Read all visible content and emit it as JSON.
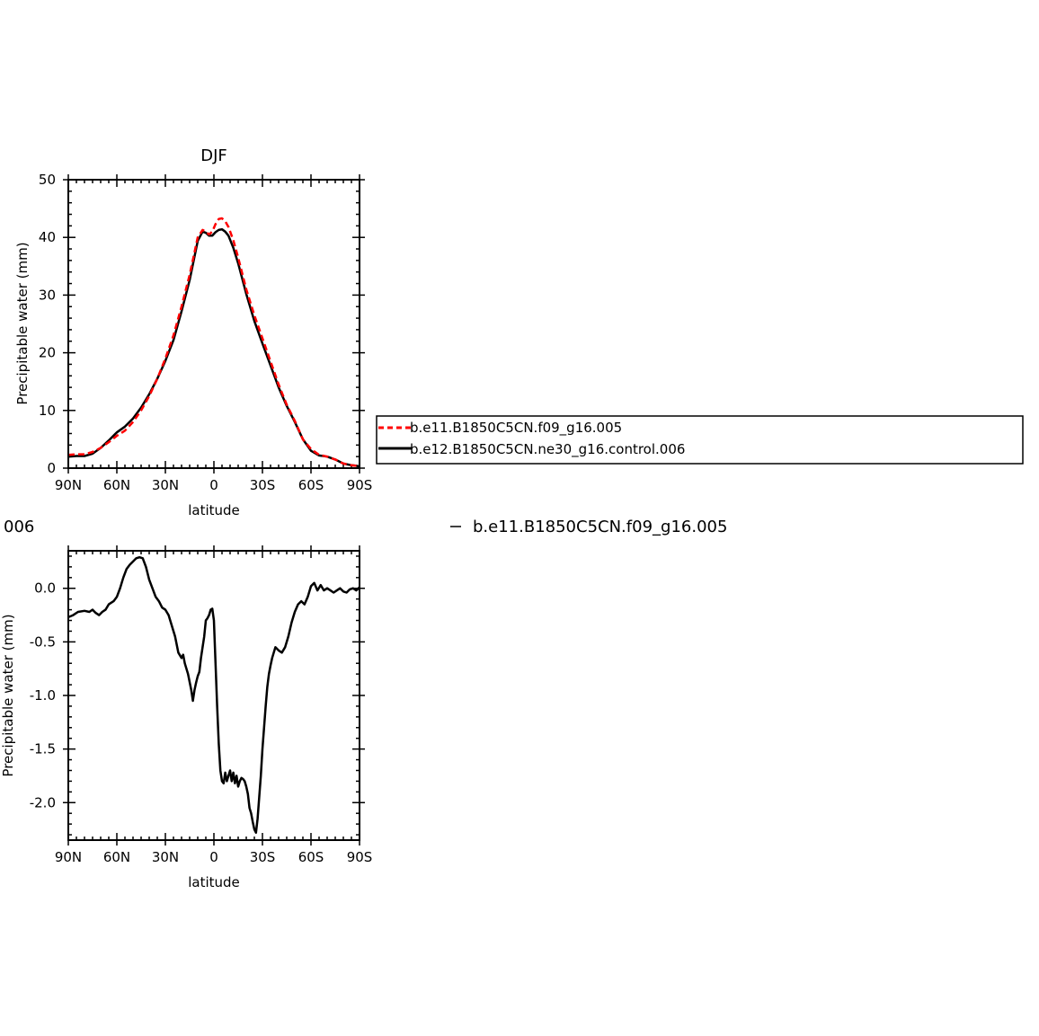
{
  "chart_data": [
    {
      "type": "line",
      "title": "DJF",
      "xlabel": "latitude",
      "ylabel": "Precipitable water (mm)",
      "xlim": [
        -90,
        90
      ],
      "ylim": [
        0,
        50
      ],
      "xticks": [
        -90,
        -60,
        -30,
        0,
        30,
        60,
        90
      ],
      "xticklabels": [
        "90N",
        "60N",
        "30N",
        "0",
        "30S",
        "60S",
        "90S"
      ],
      "yticks": [
        0,
        10,
        20,
        30,
        40,
        50
      ],
      "yticklabels": [
        "0",
        "10",
        "20",
        "30",
        "40",
        "50"
      ],
      "grid": false,
      "legend": "right",
      "series": [
        {
          "name": "b.e11.B1850C5CN.f09_g16.005",
          "color": "#ff0000",
          "dash": "dashed",
          "x": [
            -90,
            -85,
            -80,
            -75,
            -70,
            -65,
            -60,
            -55,
            -50,
            -45,
            -40,
            -35,
            -30,
            -25,
            -20,
            -15,
            -10,
            -7,
            -5,
            -3,
            -1,
            1,
            3,
            5,
            7,
            9,
            12,
            15,
            20,
            25,
            30,
            35,
            40,
            45,
            50,
            55,
            60,
            65,
            70,
            75,
            80,
            85,
            88,
            90
          ],
          "y": [
            2.3,
            2.4,
            2.4,
            2.8,
            3.5,
            4.5,
            5.6,
            6.5,
            8.0,
            10.0,
            12.5,
            15.5,
            19.0,
            23.0,
            28.0,
            33.5,
            40.0,
            41.3,
            41.0,
            40.5,
            41.0,
            42.3,
            43.2,
            43.3,
            42.8,
            41.8,
            39.5,
            36.5,
            31.0,
            26.5,
            22.5,
            18.5,
            14.5,
            11.0,
            8.2,
            5.0,
            3.3,
            2.3,
            2.0,
            1.5,
            0.8,
            0.5,
            0.4,
            0.3
          ]
        },
        {
          "name": "b.e12.B1850C5CN.ne30_g16.control.006",
          "color": "#000000",
          "dash": "solid",
          "x": [
            -90,
            -85,
            -80,
            -75,
            -70,
            -65,
            -60,
            -55,
            -50,
            -45,
            -40,
            -35,
            -30,
            -25,
            -20,
            -15,
            -10,
            -7,
            -5,
            -3,
            -1,
            1,
            3,
            5,
            7,
            9,
            12,
            15,
            20,
            25,
            30,
            35,
            40,
            45,
            50,
            55,
            60,
            65,
            70,
            75,
            80,
            85,
            88,
            90
          ],
          "y": [
            2.0,
            2.1,
            2.1,
            2.5,
            3.5,
            4.8,
            6.2,
            7.2,
            8.6,
            10.5,
            12.8,
            15.5,
            18.6,
            22.2,
            27.2,
            32.6,
            39.4,
            41.0,
            40.8,
            40.3,
            40.3,
            40.9,
            41.3,
            41.4,
            41.0,
            40.3,
            38.2,
            35.5,
            30.2,
            25.5,
            21.6,
            17.8,
            14.0,
            10.8,
            8.0,
            5.0,
            3.0,
            2.2,
            2.0,
            1.5,
            0.8,
            0.5,
            0.4,
            0.3
          ]
        }
      ]
    },
    {
      "type": "line",
      "title": "",
      "xlabel": "latitude",
      "ylabel": "Precipitable water (mm)",
      "xlim": [
        -90,
        90
      ],
      "ylim": [
        -2.35,
        0.35
      ],
      "xticks": [
        -90,
        -60,
        -30,
        0,
        30,
        60,
        90
      ],
      "xticklabels": [
        "90N",
        "60N",
        "30N",
        "0",
        "30S",
        "60S",
        "90S"
      ],
      "yticks": [
        -2.0,
        -1.5,
        -1.0,
        -0.5,
        0.0
      ],
      "yticklabels": [
        "-2.0",
        "-1.5",
        "-1.0",
        "-0.5",
        "0.0"
      ],
      "grid": false,
      "series": [
        {
          "name": "",
          "color": "#000000",
          "dash": "solid",
          "x": [
            -90,
            -87,
            -84,
            -80,
            -77,
            -75,
            -73,
            -71,
            -69,
            -67,
            -65,
            -62,
            -60,
            -58,
            -56,
            -54,
            -52,
            -50,
            -48,
            -46,
            -44,
            -42,
            -40,
            -38,
            -36,
            -34,
            -32,
            -30,
            -28,
            -26,
            -24,
            -22,
            -20,
            -19,
            -18,
            -16,
            -14,
            -13,
            -12,
            -11,
            -10,
            -9,
            -8,
            -7,
            -6,
            -5,
            -4,
            -3,
            -2,
            -1,
            0,
            1,
            2,
            3,
            4,
            5,
            6,
            7,
            8,
            9,
            10,
            11,
            12,
            13,
            14,
            15,
            16,
            17,
            18,
            19,
            20,
            21,
            22,
            23,
            24,
            25,
            26,
            27,
            28,
            29,
            30,
            31,
            32,
            33,
            34,
            35,
            36,
            37,
            38,
            40,
            42,
            44,
            46,
            48,
            50,
            52,
            54,
            56,
            58,
            60,
            62,
            64,
            66,
            68,
            70,
            72,
            74,
            76,
            78,
            80,
            82,
            84,
            86,
            88,
            90
          ],
          "y": [
            -0.27,
            -0.25,
            -0.22,
            -0.21,
            -0.22,
            -0.2,
            -0.23,
            -0.25,
            -0.22,
            -0.2,
            -0.15,
            -0.12,
            -0.08,
            0.0,
            0.1,
            0.18,
            0.22,
            0.25,
            0.28,
            0.29,
            0.28,
            0.2,
            0.08,
            0.0,
            -0.08,
            -0.12,
            -0.18,
            -0.2,
            -0.25,
            -0.35,
            -0.45,
            -0.6,
            -0.65,
            -0.62,
            -0.7,
            -0.8,
            -0.95,
            -1.05,
            -0.95,
            -0.88,
            -0.82,
            -0.78,
            -0.65,
            -0.55,
            -0.45,
            -0.3,
            -0.28,
            -0.25,
            -0.2,
            -0.19,
            -0.3,
            -0.7,
            -1.1,
            -1.45,
            -1.7,
            -1.8,
            -1.82,
            -1.72,
            -1.8,
            -1.75,
            -1.7,
            -1.8,
            -1.72,
            -1.82,
            -1.75,
            -1.85,
            -1.8,
            -1.77,
            -1.78,
            -1.8,
            -1.85,
            -1.92,
            -2.05,
            -2.1,
            -2.18,
            -2.25,
            -2.28,
            -2.15,
            -1.95,
            -1.75,
            -1.5,
            -1.3,
            -1.1,
            -0.92,
            -0.8,
            -0.72,
            -0.65,
            -0.6,
            -0.55,
            -0.58,
            -0.6,
            -0.55,
            -0.45,
            -0.32,
            -0.22,
            -0.15,
            -0.12,
            -0.15,
            -0.08,
            0.02,
            0.05,
            -0.02,
            0.03,
            -0.02,
            0.0,
            -0.02,
            -0.04,
            -0.02,
            0.0,
            -0.03,
            -0.04,
            -0.01,
            0.0,
            -0.02,
            0.01
          ]
        }
      ]
    }
  ],
  "legend": {
    "entries": [
      "b.e11.B1850C5CN.f09_g16.005",
      "b.e12.B1850C5CN.ne30_g16.control.006"
    ]
  },
  "fragments": {
    "left_text": "006",
    "right_text": "b.e11.B1850C5CN.f09_g16.005"
  }
}
